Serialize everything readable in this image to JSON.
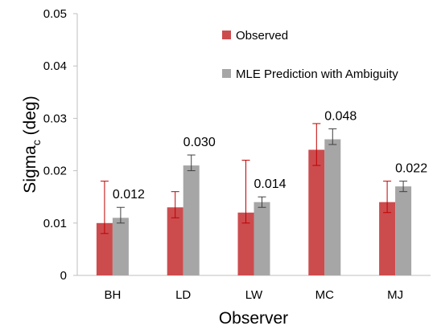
{
  "chart_data": {
    "type": "bar",
    "title": "",
    "xlabel": "Observer",
    "ylabel_main": "Sigma",
    "ylabel_sub": "c",
    "ylabel_unit": " (deg)",
    "ylim": [
      0,
      0.05
    ],
    "yticks": [
      0,
      0.01,
      0.02,
      0.03,
      0.04,
      0.05
    ],
    "ytick_labels": [
      "0",
      "0.01",
      "0.02",
      "0.03",
      "0.04",
      "0.05"
    ],
    "categories": [
      "BH",
      "LD",
      "LW",
      "MC",
      "MJ"
    ],
    "series": [
      {
        "name": "Observed",
        "color": "#cc4c4e",
        "error_color": "#c00000",
        "values": [
          0.01,
          0.013,
          0.012,
          0.024,
          0.014
        ],
        "error_upper": [
          0.018,
          0.016,
          0.022,
          0.029,
          0.018
        ],
        "error_lower": [
          0.008,
          0.011,
          0.01,
          0.021,
          0.012
        ]
      },
      {
        "name": "MLE Prediction with Ambiguity",
        "color": "#a6a6a6",
        "error_color": "#404040",
        "values": [
          0.011,
          0.021,
          0.014,
          0.026,
          0.017
        ],
        "error_upper": [
          0.013,
          0.023,
          0.015,
          0.028,
          0.018
        ],
        "error_lower": [
          0.01,
          0.02,
          0.013,
          0.025,
          0.016
        ]
      }
    ],
    "annotations": [
      "0.012",
      "0.030",
      "0.014",
      "0.048",
      "0.022"
    ],
    "grid": false,
    "legend_position": "top-right"
  }
}
